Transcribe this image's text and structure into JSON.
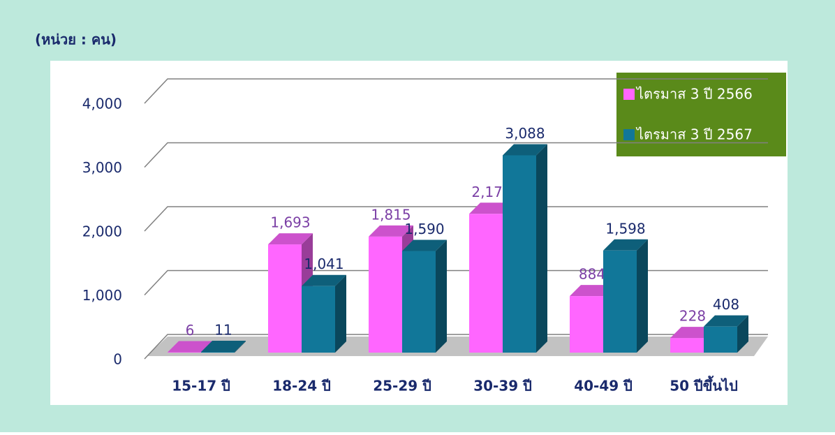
{
  "chart_data": {
    "type": "bar3d",
    "unit_label": "(หน่วย : คน)",
    "categories": [
      "15-17 ปี",
      "18-24 ปี",
      "25-29 ปี",
      "30-39 ปี",
      "40-49 ปี",
      "50 ปีขึ้นไป"
    ],
    "series": [
      {
        "name": "ไตรมาส 3 ปี 2566",
        "color": "#ff66ff",
        "values": [
          6,
          1693,
          1815,
          2172,
          884,
          228
        ],
        "value_labels": [
          "6",
          "1,693",
          "1,815",
          "2,172",
          "884",
          "228"
        ]
      },
      {
        "name": "ไตรมาส 3 ปี 2567",
        "color": "#117799",
        "values": [
          11,
          1041,
          1590,
          3088,
          1598,
          408
        ],
        "value_labels": [
          "11",
          "1,041",
          "1,590",
          "3,088",
          "1,598",
          "408"
        ]
      }
    ],
    "ylim": [
      0,
      4000
    ],
    "yticks": [
      0,
      {
        "value": 1000,
        "label": "1,000"
      },
      {
        "value": 2000,
        "label": "2,000"
      },
      {
        "value": 3000,
        "label": "3,000"
      },
      {
        "value": 4000,
        "label": "4,000"
      }
    ],
    "grid": true,
    "legend": "top-right"
  }
}
